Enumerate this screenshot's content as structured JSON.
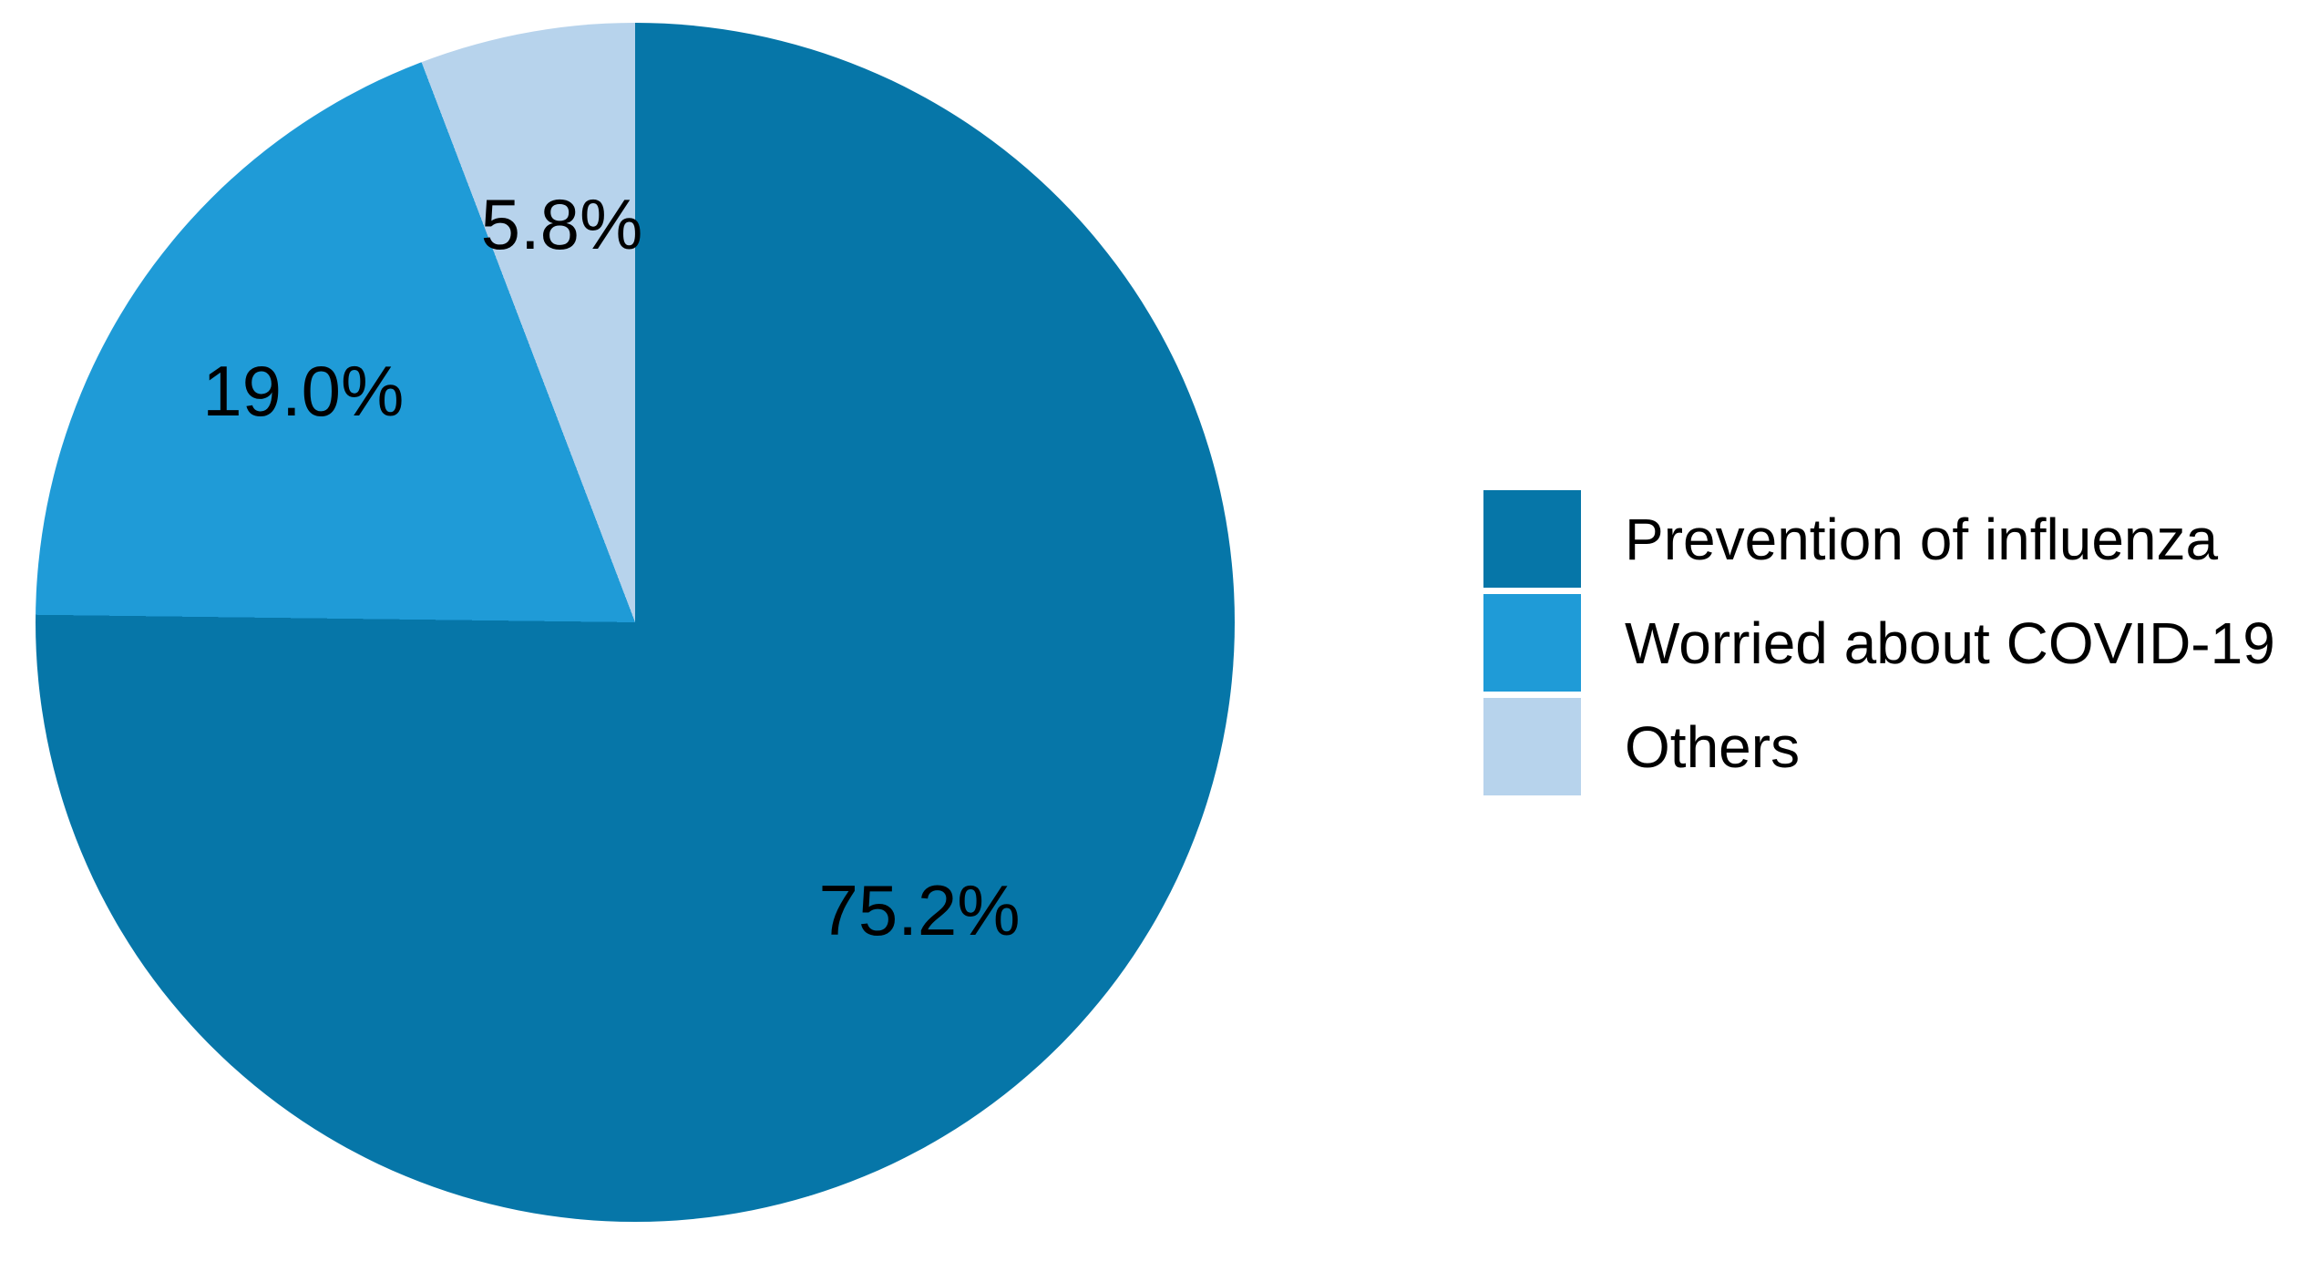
{
  "figure": {
    "background_color": "#ffffff"
  },
  "chart_data": {
    "type": "pie",
    "title": "",
    "labels": [
      "Prevention of influenza",
      "Worried about COVID-19",
      "Others"
    ],
    "values": [
      75.2,
      19.0,
      5.8
    ],
    "value_labels": [
      "75.2%",
      "19.0%",
      "5.8%"
    ],
    "colors": [
      "#0676A8",
      "#1F9BD7",
      "#B7D3EC"
    ],
    "start_angle_deg": 0,
    "direction": "clockwise",
    "legend_position": "right",
    "label_radius_fraction": 0.675,
    "label_color": "#000000"
  }
}
